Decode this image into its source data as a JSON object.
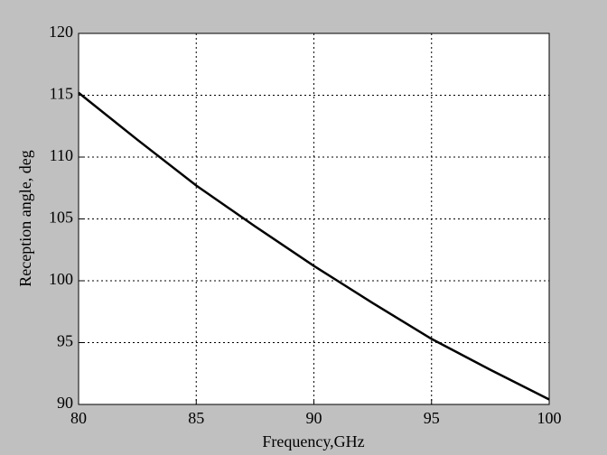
{
  "chart_data": {
    "type": "line",
    "xlabel": "Frequency,GHz",
    "ylabel": "Reception angle, deg",
    "x": [
      80,
      82.5,
      85,
      87.5,
      90,
      92.5,
      95,
      97.5,
      100
    ],
    "series": [
      {
        "color": "#000000",
        "values": [
          115.2,
          111.4,
          107.7,
          104.4,
          101.2,
          98.2,
          95.3,
          92.8,
          90.4
        ]
      }
    ],
    "xlim": [
      80,
      100
    ],
    "xticks": [
      80,
      85,
      90,
      95,
      100
    ],
    "ylim": [
      90,
      120
    ],
    "yticks": [
      90,
      95,
      100,
      105,
      110,
      115,
      120
    ],
    "grid": true
  }
}
